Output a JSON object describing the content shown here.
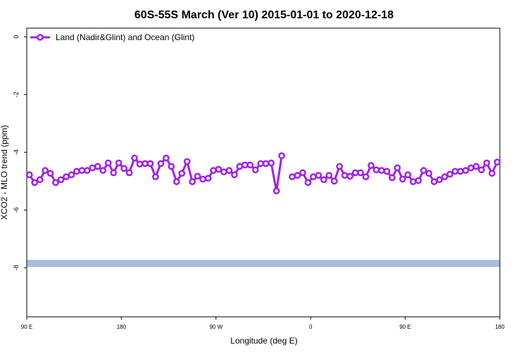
{
  "chart_data": {
    "type": "line",
    "title": "60S-55S March (Ver 10)   2015-01-01 to 2020-12-18",
    "x_label": "Longitude (deg E)",
    "y_label": "XCO2 - MLO trend (ppm)",
    "xlim": [
      90,
      540
    ],
    "ylim": [
      -9.7,
      0.3
    ],
    "xticks": [
      {
        "value": 90,
        "label": "90 E"
      },
      {
        "value": 180,
        "label": "180"
      },
      {
        "value": 270,
        "label": "90 W"
      },
      {
        "value": 360,
        "label": "0"
      },
      {
        "value": 450,
        "label": "90 E"
      },
      {
        "value": 540,
        "label": "180"
      }
    ],
    "yticks": [
      0,
      -2,
      -4,
      -6,
      -8
    ],
    "legend": "top-left",
    "reference_band": {
      "value": -7.85,
      "color": "#a6bddb"
    },
    "x": [
      92.5,
      97.5,
      102.5,
      107.5,
      112.5,
      117.5,
      122.5,
      127.5,
      132.5,
      137.5,
      142.5,
      147.5,
      152.5,
      157.5,
      162.5,
      167.5,
      172.5,
      177.5,
      182.5,
      187.5,
      192.5,
      197.5,
      202.5,
      207.5,
      212.5,
      217.5,
      222.5,
      227.5,
      232.5,
      237.5,
      242.5,
      247.5,
      252.5,
      257.5,
      262.5,
      267.5,
      272.5,
      277.5,
      282.5,
      287.5,
      292.5,
      297.5,
      302.5,
      307.5,
      312.5,
      317.5,
      322.5,
      327.5,
      332.5,
      337.5,
      342.5,
      347.5,
      352.5,
      357.5,
      362.5,
      367.5,
      372.5,
      377.5,
      382.5,
      387.5,
      392.5,
      397.5,
      402.5,
      407.5,
      412.5,
      417.5,
      422.5,
      427.5,
      432.5,
      437.5,
      442.5,
      447.5,
      452.5,
      457.5,
      462.5,
      467.5,
      472.5,
      477.5,
      482.5,
      487.5,
      492.5,
      497.5,
      502.5,
      507.5,
      512.5,
      517.5,
      522.5,
      527.5,
      532.5,
      537.5
    ],
    "series": [
      {
        "name": "Land (Nadir&Glint) and Ocean (Glint)",
        "color": "#a020f0",
        "values": [
          -4.78,
          -5.05,
          -4.95,
          -4.63,
          -4.73,
          -5.05,
          -4.95,
          -4.85,
          -4.78,
          -4.66,
          -4.63,
          -4.63,
          -4.54,
          -4.49,
          -4.63,
          -4.37,
          -4.71,
          -4.37,
          -4.56,
          -4.71,
          -4.2,
          -4.41,
          -4.39,
          -4.39,
          -4.85,
          -4.39,
          -4.2,
          -4.49,
          -5.02,
          -4.73,
          -4.32,
          -5.02,
          -4.83,
          -4.93,
          -4.9,
          -4.63,
          -4.59,
          -4.68,
          -4.63,
          -4.78,
          -4.49,
          -4.44,
          -4.44,
          -4.61,
          -4.39,
          -4.39,
          -4.37,
          -5.34,
          -4.12,
          null,
          -4.85,
          -4.8,
          -4.71,
          -5.05,
          -4.85,
          -4.8,
          -4.95,
          -4.8,
          -5.0,
          -4.49,
          -4.8,
          -4.83,
          -4.71,
          -4.71,
          -4.85,
          -4.46,
          -4.61,
          -4.63,
          -4.66,
          -4.88,
          -4.54,
          -4.93,
          -4.78,
          -5.02,
          -4.98,
          -4.63,
          -4.73,
          -5.02,
          -4.95,
          -4.85,
          -4.76,
          -4.66,
          -4.66,
          -4.63,
          -4.54,
          -4.49,
          -4.61,
          -4.37,
          -4.73,
          -4.34
        ]
      }
    ]
  }
}
